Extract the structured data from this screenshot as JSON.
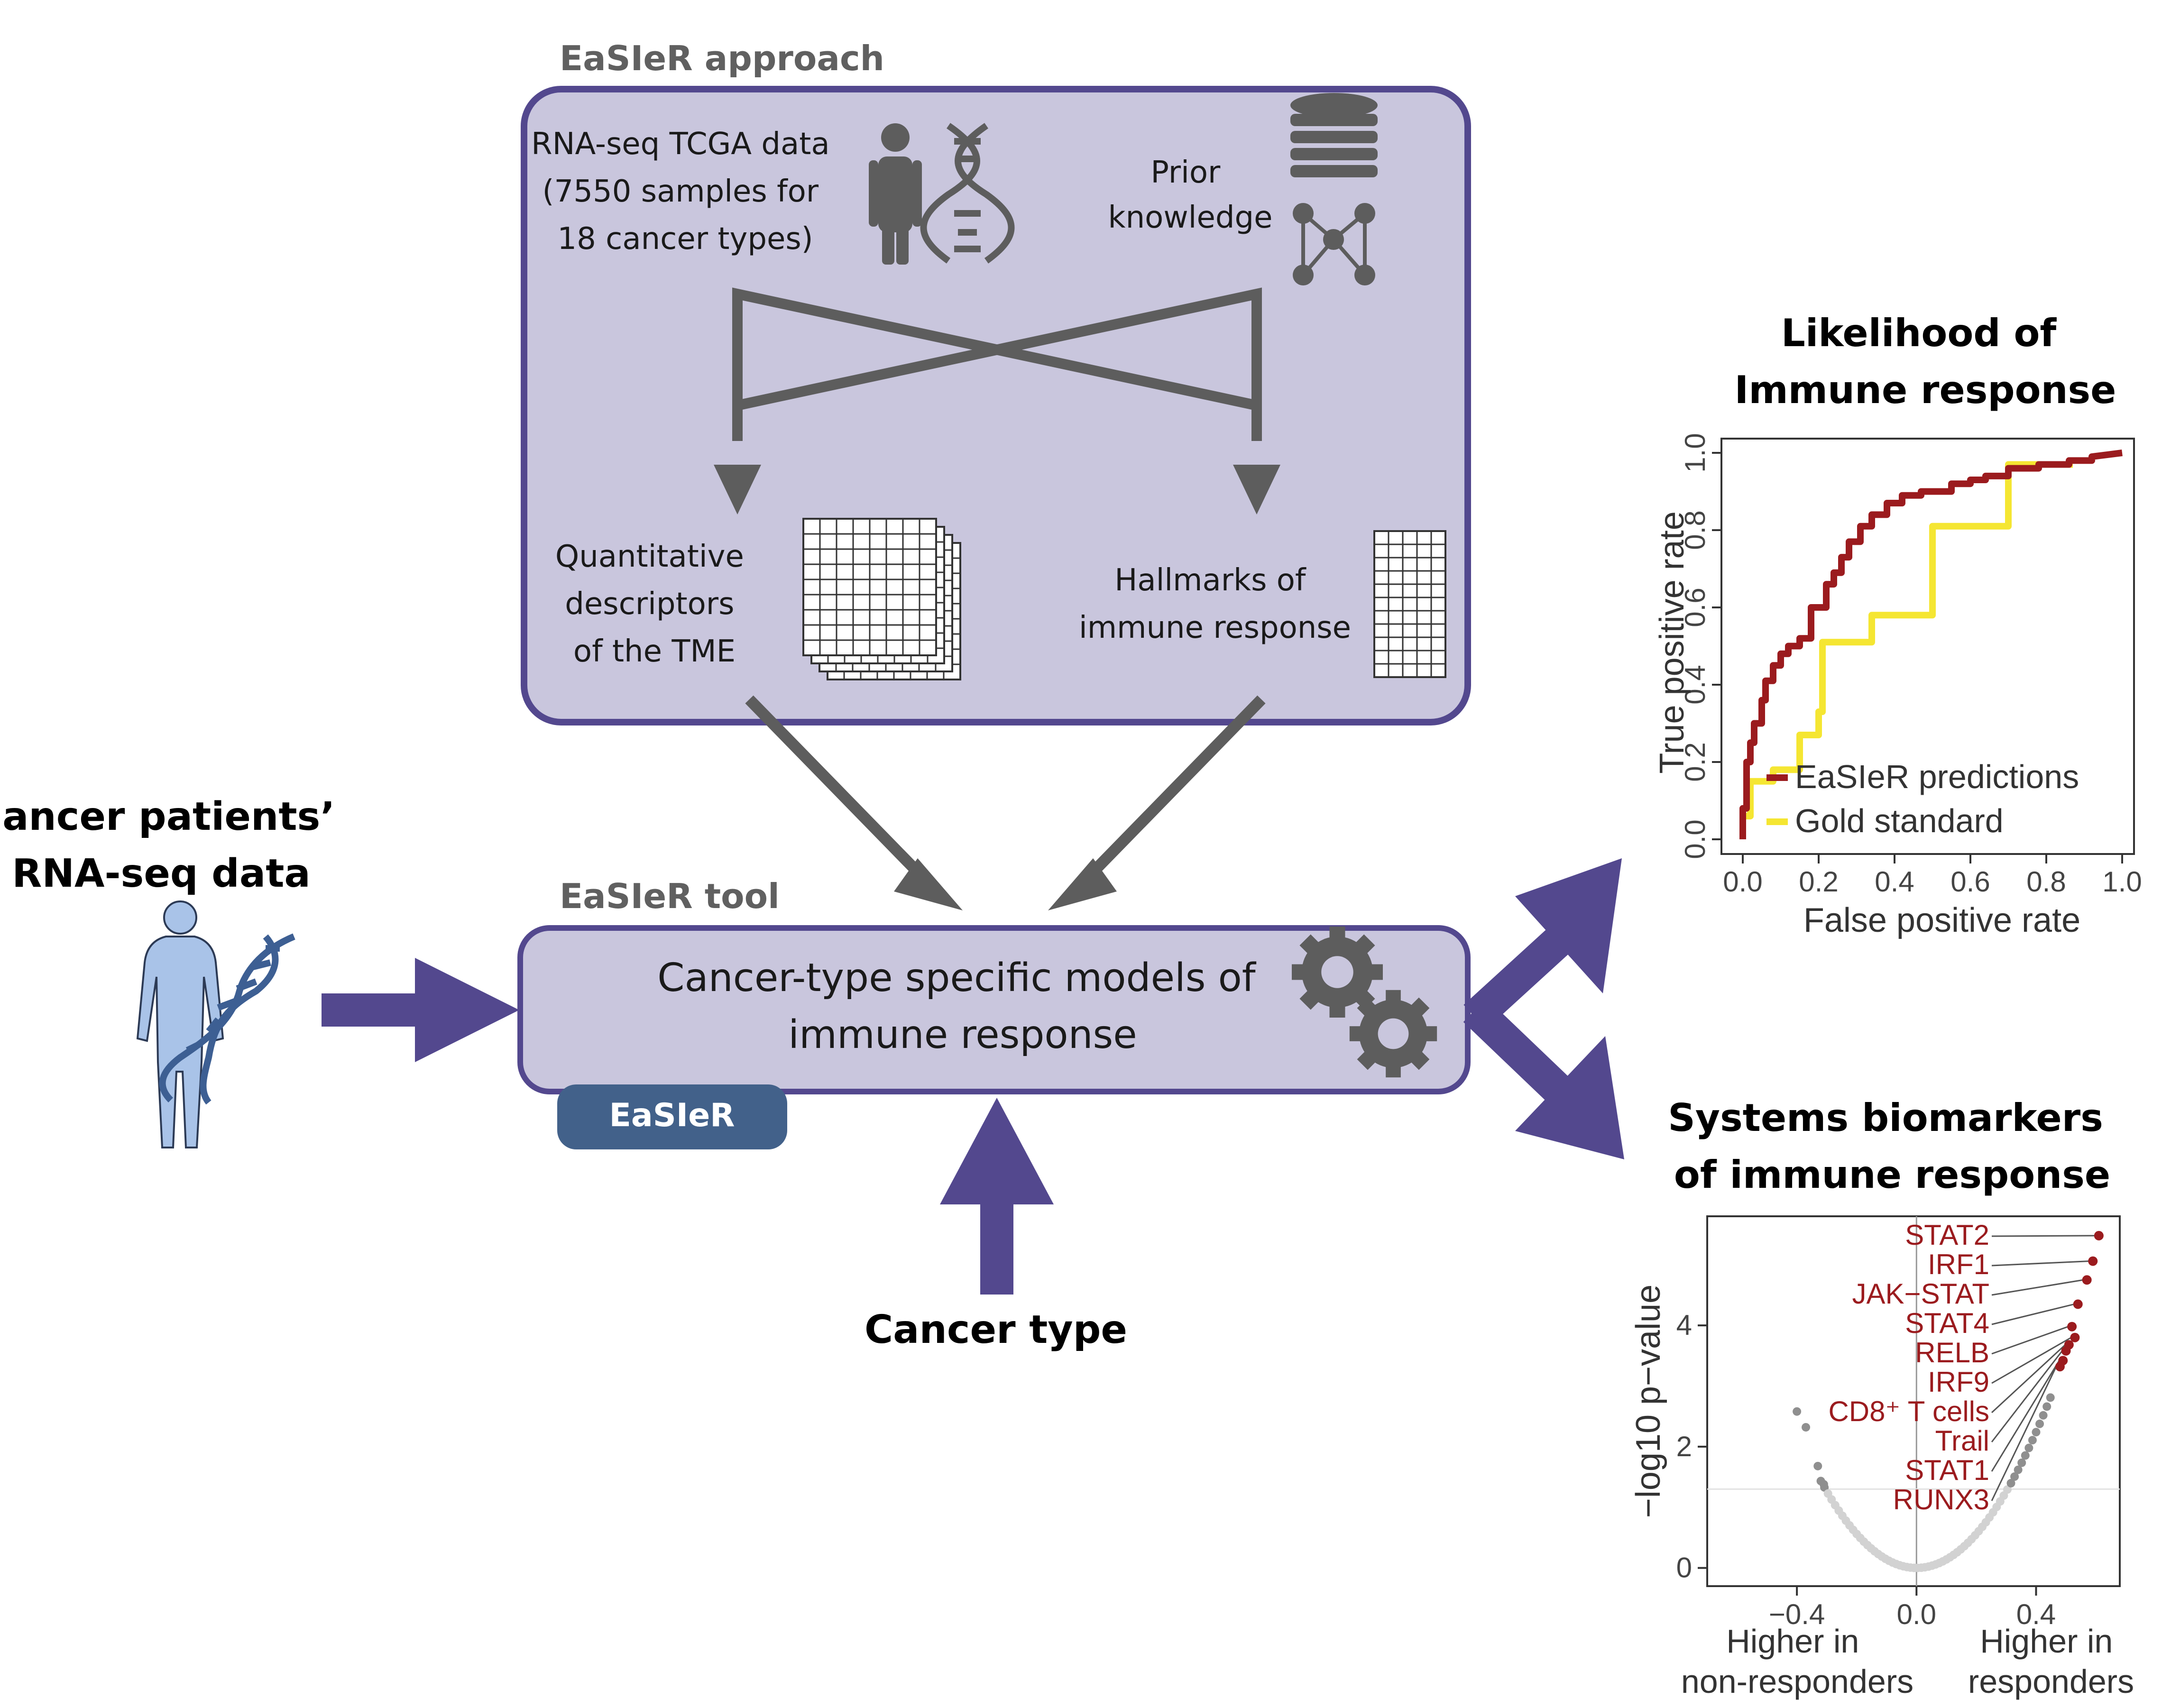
{
  "approach": {
    "title": "EaSIeR approach",
    "rna_seq": [
      "RNA-seq TCGA data",
      "(7550 samples for",
      "18 cancer types)"
    ],
    "prior": [
      "Prior",
      "knowledge"
    ],
    "quant": [
      "Quantitative",
      "descriptors",
      "of the TME"
    ],
    "hallmarks": [
      "Hallmarks of",
      "immune response"
    ]
  },
  "tool": {
    "title": "EaSIeR tool",
    "models": [
      "Cancer-type specific models of",
      "immune response"
    ],
    "badge": "EaSIeR"
  },
  "patients": {
    "label": [
      "Cancer patients’",
      "RNA-seq data"
    ]
  },
  "cancer_type": {
    "label": "Cancer type"
  },
  "colors": {
    "box_fill": "#c9c6dd",
    "box_stroke": "#53488e",
    "purple_arrow": "#53488e",
    "gray": "#5d5d5d",
    "badge": "#42618a",
    "easier_line": "#9b1b1e",
    "gold_line": "#f5e632",
    "highlight_points": "#9b1b1e",
    "gray_points": "#8f8f8f",
    "light_points": "#d2d2d2"
  },
  "chart_data": [
    {
      "type": "line",
      "title": [
        "Likelihood of",
        "Immune response"
      ],
      "xlabel": "False positive rate",
      "ylabel": "True positive rate",
      "xlim": [
        0,
        1
      ],
      "ylim": [
        0,
        1
      ],
      "x_ticks": [
        "0.0",
        "0.2",
        "0.4",
        "0.6",
        "0.8",
        "1.0"
      ],
      "y_ticks": [
        "0.0",
        "0.2",
        "0.4",
        "0.6",
        "0.8",
        "1.0"
      ],
      "grid": false,
      "legend_position": "bottom-right",
      "series": [
        {
          "name": "EaSIeR predictions",
          "color": "#9b1b1e",
          "points": [
            [
              0,
              0
            ],
            [
              0,
              0.08
            ],
            [
              0.01,
              0.08
            ],
            [
              0.01,
              0.2
            ],
            [
              0.02,
              0.2
            ],
            [
              0.02,
              0.25
            ],
            [
              0.03,
              0.25
            ],
            [
              0.03,
              0.3
            ],
            [
              0.05,
              0.3
            ],
            [
              0.05,
              0.36
            ],
            [
              0.06,
              0.36
            ],
            [
              0.06,
              0.41
            ],
            [
              0.08,
              0.41
            ],
            [
              0.08,
              0.45
            ],
            [
              0.1,
              0.45
            ],
            [
              0.1,
              0.48
            ],
            [
              0.12,
              0.48
            ],
            [
              0.12,
              0.5
            ],
            [
              0.15,
              0.5
            ],
            [
              0.15,
              0.52
            ],
            [
              0.18,
              0.52
            ],
            [
              0.18,
              0.6
            ],
            [
              0.22,
              0.6
            ],
            [
              0.22,
              0.66
            ],
            [
              0.24,
              0.66
            ],
            [
              0.24,
              0.69
            ],
            [
              0.26,
              0.69
            ],
            [
              0.26,
              0.73
            ],
            [
              0.28,
              0.73
            ],
            [
              0.28,
              0.77
            ],
            [
              0.31,
              0.77
            ],
            [
              0.31,
              0.81
            ],
            [
              0.34,
              0.81
            ],
            [
              0.34,
              0.84
            ],
            [
              0.38,
              0.84
            ],
            [
              0.38,
              0.87
            ],
            [
              0.42,
              0.87
            ],
            [
              0.42,
              0.89
            ],
            [
              0.47,
              0.89
            ],
            [
              0.47,
              0.9
            ],
            [
              0.55,
              0.9
            ],
            [
              0.55,
              0.92
            ],
            [
              0.6,
              0.92
            ],
            [
              0.6,
              0.93
            ],
            [
              0.64,
              0.93
            ],
            [
              0.64,
              0.94
            ],
            [
              0.7,
              0.94
            ],
            [
              0.7,
              0.96
            ],
            [
              0.78,
              0.96
            ],
            [
              0.78,
              0.97
            ],
            [
              0.86,
              0.97
            ],
            [
              0.86,
              0.98
            ],
            [
              0.92,
              0.98
            ],
            [
              0.92,
              0.99
            ],
            [
              1.0,
              1.0
            ]
          ]
        },
        {
          "name": "Gold standard",
          "color": "#f5e632",
          "points": [
            [
              0,
              0
            ],
            [
              0,
              0.06
            ],
            [
              0.02,
              0.06
            ],
            [
              0.02,
              0.15
            ],
            [
              0.08,
              0.15
            ],
            [
              0.08,
              0.18
            ],
            [
              0.15,
              0.18
            ],
            [
              0.15,
              0.27
            ],
            [
              0.2,
              0.27
            ],
            [
              0.2,
              0.33
            ],
            [
              0.21,
              0.33
            ],
            [
              0.21,
              0.51
            ],
            [
              0.34,
              0.51
            ],
            [
              0.34,
              0.58
            ],
            [
              0.5,
              0.58
            ],
            [
              0.5,
              0.81
            ],
            [
              0.7,
              0.81
            ],
            [
              0.7,
              0.97
            ],
            [
              0.87,
              0.97
            ]
          ]
        }
      ]
    },
    {
      "type": "scatter",
      "title": [
        "Systems biomarkers",
        "of immune response"
      ],
      "xlabel": "",
      "ylabel": "−log10 p−value",
      "xlim": [
        -0.7,
        0.68
      ],
      "ylim": [
        -0.3,
        5.8
      ],
      "x_ticks": [
        "−0.4",
        "0.0",
        "0.4"
      ],
      "y_ticks": [
        "0",
        "2",
        "4"
      ],
      "x_annotations": [
        [
          "Higher in",
          "non-responders"
        ],
        [
          "Higher in",
          "responders"
        ]
      ],
      "significance_line": 1.3,
      "highlighted": [
        {
          "label": "STAT2",
          "x": 0.61,
          "y": 5.48
        },
        {
          "label": "IRF1",
          "x": 0.59,
          "y": 5.06
        },
        {
          "label": "JAK−STAT",
          "x": 0.57,
          "y": 4.75
        },
        {
          "label": "STAT4",
          "x": 0.54,
          "y": 4.35
        },
        {
          "label": "RELB",
          "x": 0.52,
          "y": 3.98
        },
        {
          "label": "IRF9",
          "x": 0.53,
          "y": 3.8
        },
        {
          "label": "CD8⁺ T cells",
          "x": 0.51,
          "y": 3.68
        },
        {
          "label": "Trail",
          "x": 0.5,
          "y": 3.58
        },
        {
          "label": "STAT1",
          "x": 0.49,
          "y": 3.42
        },
        {
          "label": "RUNX3",
          "x": 0.48,
          "y": 3.32
        }
      ],
      "other_points_left": [
        [
          -0.4,
          2.58
        ],
        [
          -0.37,
          2.32
        ],
        [
          -0.33,
          1.68
        ],
        [
          -0.31,
          1.38
        ]
      ]
    }
  ]
}
